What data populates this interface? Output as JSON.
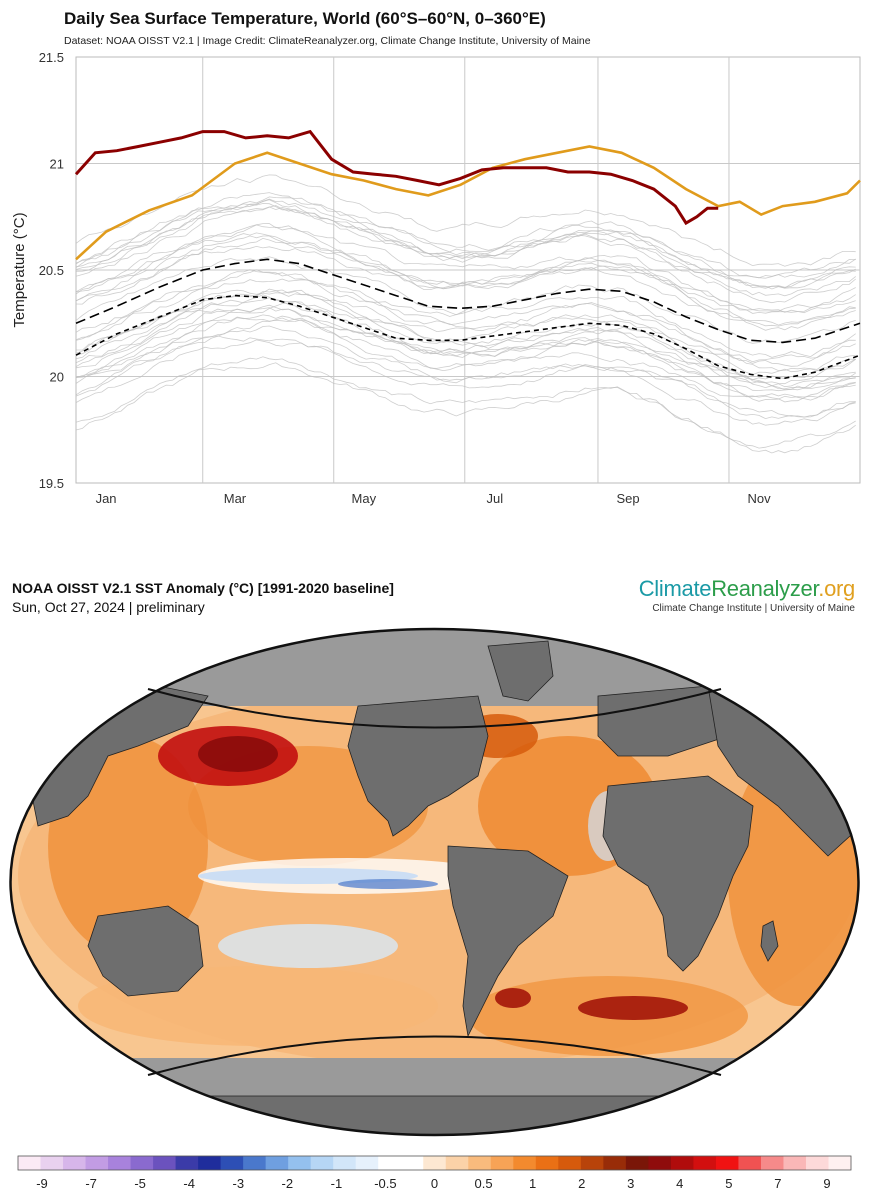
{
  "chart_data": [
    {
      "type": "line",
      "title": "Daily Sea Surface Temperature, World (60°S–60°N, 0–360°E)",
      "subtitle": "Dataset: NOAA OISST V2.1 | Image Credit: ClimateReanalyzer.org, Climate Change Institute, University of Maine",
      "xlabel": "",
      "ylabel": "Temperature (°C)",
      "ylim": [
        19.5,
        21.5
      ],
      "yticks": [
        "21.5",
        "21",
        "20.5",
        "20",
        "19.5"
      ],
      "xticks": [
        {
          "label": "Jan",
          "day": 15
        },
        {
          "label": "Mar",
          "day": 75
        },
        {
          "label": "May",
          "day": 135
        },
        {
          "label": "Jul",
          "day": 196
        },
        {
          "label": "Sep",
          "day": 258
        },
        {
          "label": "Nov",
          "day": 319
        }
      ],
      "month_boundaries": [
        60,
        121,
        182,
        244,
        305
      ],
      "xlim": [
        1,
        366
      ],
      "grid": true,
      "series": [
        {
          "color": "#e09b1c",
          "x": [
            1,
            15,
            35,
            55,
            75,
            90,
            105,
            120,
            135,
            150,
            165,
            180,
            195,
            210,
            225,
            240,
            255,
            270,
            285,
            300,
            310,
            320,
            330,
            345,
            360,
            366
          ],
          "y": [
            20.55,
            20.68,
            20.78,
            20.85,
            21.0,
            21.05,
            21.0,
            20.95,
            20.92,
            20.88,
            20.85,
            20.9,
            20.98,
            21.02,
            21.05,
            21.08,
            21.05,
            20.98,
            20.88,
            20.8,
            20.82,
            20.76,
            20.8,
            20.82,
            20.86,
            20.92
          ]
        },
        {
          "color": "#8b0000",
          "x": [
            1,
            10,
            20,
            30,
            40,
            50,
            60,
            70,
            80,
            90,
            100,
            110,
            120,
            130,
            140,
            150,
            160,
            170,
            180,
            190,
            200,
            210,
            220,
            230,
            240,
            250,
            260,
            270,
            280,
            285,
            290,
            295,
            300
          ],
          "y": [
            20.95,
            21.05,
            21.06,
            21.08,
            21.1,
            21.12,
            21.15,
            21.15,
            21.12,
            21.13,
            21.12,
            21.15,
            21.02,
            20.96,
            20.95,
            20.94,
            20.92,
            20.9,
            20.93,
            20.97,
            20.98,
            20.98,
            20.98,
            20.96,
            20.96,
            20.95,
            20.92,
            20.88,
            20.8,
            20.72,
            20.75,
            20.79,
            20.79
          ]
        },
        {
          "color": "#000000",
          "dash": "long",
          "x": [
            1,
            20,
            40,
            60,
            75,
            90,
            105,
            120,
            135,
            150,
            165,
            180,
            195,
            210,
            225,
            240,
            255,
            270,
            285,
            300,
            315,
            330,
            345,
            366
          ],
          "y": [
            20.25,
            20.33,
            20.42,
            20.5,
            20.53,
            20.55,
            20.53,
            20.48,
            20.43,
            20.38,
            20.33,
            20.32,
            20.33,
            20.36,
            20.39,
            20.41,
            20.4,
            20.35,
            20.28,
            20.22,
            20.17,
            20.16,
            20.18,
            20.25
          ]
        },
        {
          "color": "#000000",
          "dash": "short",
          "x": [
            1,
            20,
            40,
            60,
            75,
            90,
            105,
            120,
            135,
            150,
            165,
            180,
            195,
            210,
            225,
            240,
            255,
            270,
            285,
            300,
            315,
            330,
            345,
            366
          ],
          "y": [
            20.1,
            20.2,
            20.28,
            20.36,
            20.38,
            20.37,
            20.33,
            20.28,
            20.23,
            20.18,
            20.17,
            20.17,
            20.19,
            20.21,
            20.23,
            20.25,
            20.24,
            20.2,
            20.13,
            20.05,
            20.01,
            19.99,
            20.02,
            20.1
          ]
        }
      ]
    },
    {
      "type": "heatmap",
      "title": "NOAA OISST V2.1 SST Anomaly (°C) [1991-2020 baseline]",
      "subtitle": "Sun, Oct 27, 2024 | preliminary",
      "colorbar_ticks": [
        "-9",
        "-7",
        "-5",
        "-4",
        "-3",
        "-2",
        "-1",
        "-0.5",
        "0",
        "0.5",
        "1",
        "2",
        "3",
        "4",
        "5",
        "7",
        "9"
      ],
      "colorbar_colors": [
        "#fbeaf5",
        "#e9d1ef",
        "#d7b6ea",
        "#c29ce4",
        "#a882dc",
        "#8a6acf",
        "#6b52be",
        "#3b3ba8",
        "#1f2d9c",
        "#2d4fb5",
        "#4a78cc",
        "#6f9fe0",
        "#94c0ee",
        "#b6d6f5",
        "#d2e6f9",
        "#e6f1fc",
        "#ffffff",
        "#ffffff",
        "#fde8d2",
        "#fbd2a8",
        "#f9bb7d",
        "#f7a356",
        "#f38a2e",
        "#ea7015",
        "#d65a0c",
        "#b8430a",
        "#982c08",
        "#7a1608",
        "#8f0c0c",
        "#b00c0c",
        "#d20f0f",
        "#f01212",
        "#f05252",
        "#f68a8a",
        "#fab7b7",
        "#fdd9d9",
        "#fef0f0"
      ]
    }
  ],
  "brand": {
    "logo_part1": "Climate",
    "logo_part2": "Reanalyzer",
    "logo_part3": ".org",
    "tagline": "Climate Change Institute | University of Maine",
    "colors": {
      "climate": "#1b9aa6",
      "reanalyzer": "#2c9d4a",
      "org": "#e0a020"
    }
  }
}
